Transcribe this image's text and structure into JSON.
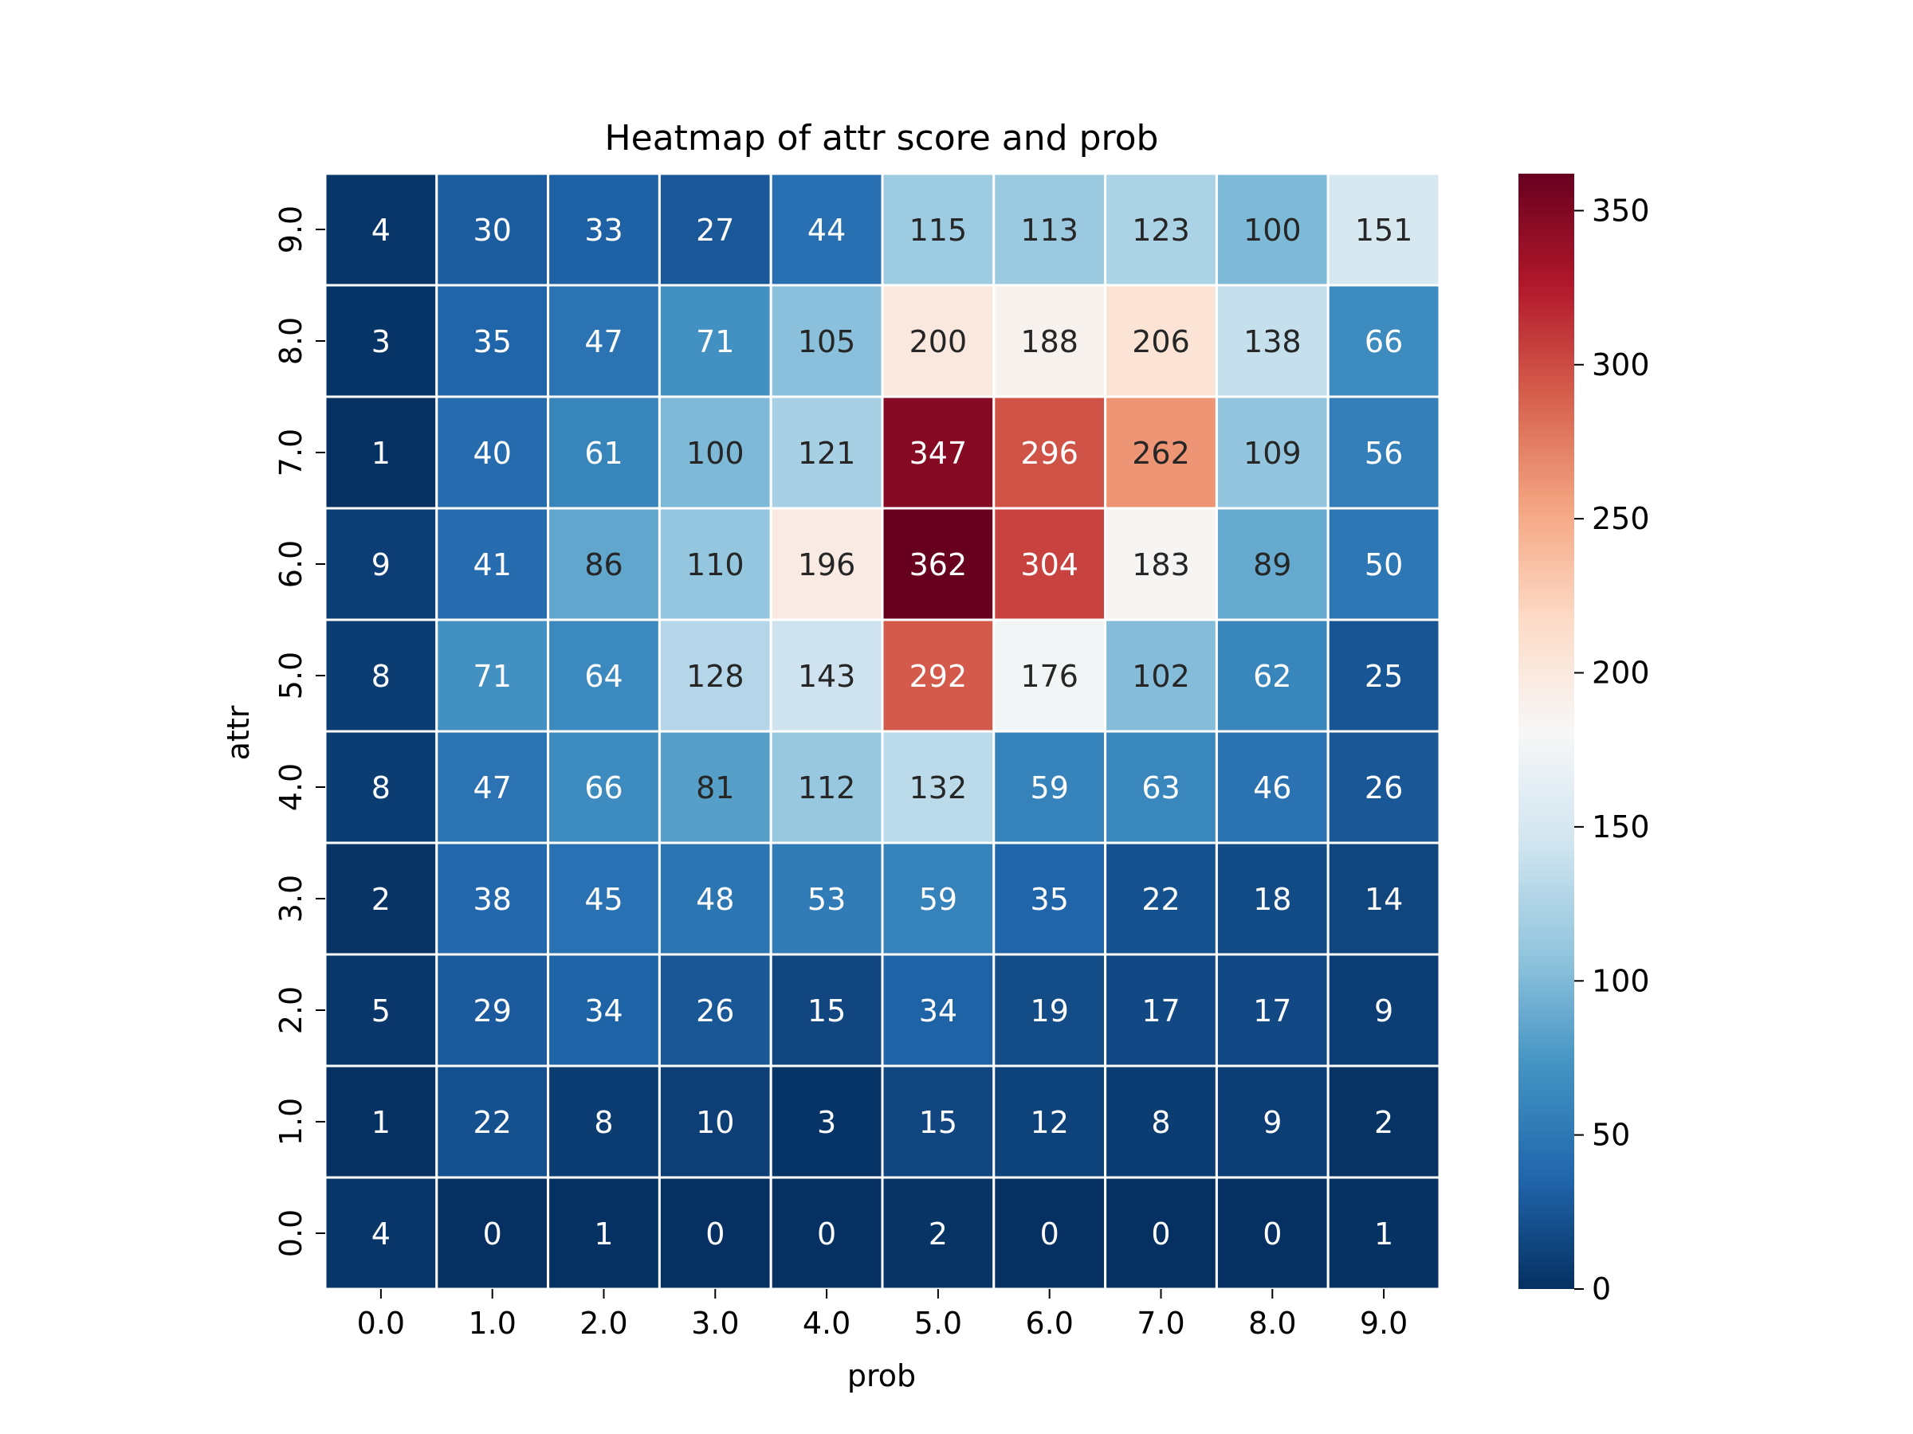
{
  "chart_data": {
    "type": "heatmap",
    "title": "Heatmap of attr score and prob",
    "xlabel": "prob",
    "ylabel": "attr",
    "x_categories": [
      "0.0",
      "1.0",
      "2.0",
      "3.0",
      "4.0",
      "5.0",
      "6.0",
      "7.0",
      "8.0",
      "9.0"
    ],
    "y_categories": [
      "0.0",
      "1.0",
      "2.0",
      "3.0",
      "4.0",
      "5.0",
      "6.0",
      "7.0",
      "8.0",
      "9.0"
    ],
    "values": [
      [
        4,
        0,
        1,
        0,
        0,
        2,
        0,
        0,
        0,
        1
      ],
      [
        1,
        22,
        8,
        10,
        3,
        15,
        12,
        8,
        9,
        2
      ],
      [
        5,
        29,
        34,
        26,
        15,
        34,
        19,
        17,
        17,
        9
      ],
      [
        2,
        38,
        45,
        48,
        53,
        59,
        35,
        22,
        18,
        14
      ],
      [
        8,
        47,
        66,
        81,
        112,
        132,
        59,
        63,
        46,
        26
      ],
      [
        8,
        71,
        64,
        128,
        143,
        292,
        176,
        102,
        62,
        25
      ],
      [
        9,
        41,
        86,
        110,
        196,
        362,
        304,
        183,
        89,
        50
      ],
      [
        1,
        40,
        61,
        100,
        121,
        347,
        296,
        262,
        109,
        56
      ],
      [
        3,
        35,
        47,
        71,
        105,
        200,
        188,
        206,
        138,
        66
      ],
      [
        4,
        30,
        33,
        27,
        44,
        115,
        113,
        123,
        100,
        151
      ]
    ],
    "value_range": [
      0,
      362
    ],
    "colormap": "RdBu_r",
    "colorbar_ticks": [
      "0",
      "50",
      "100",
      "150",
      "200",
      "250",
      "300",
      "350"
    ],
    "colorbar_tick_values": [
      0,
      50,
      100,
      150,
      200,
      250,
      300,
      350
    ],
    "grid": true,
    "annotations": true
  },
  "colors": {
    "cell_border": "#ffffff",
    "axis_text": "#000000",
    "annotation_light": "#ffffff",
    "annotation_dark": "#262626"
  }
}
